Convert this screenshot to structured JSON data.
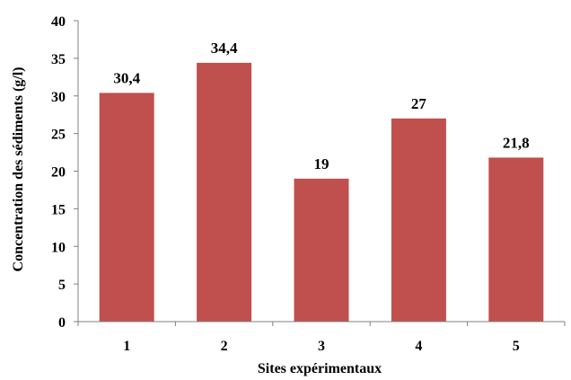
{
  "chart_data": {
    "type": "bar",
    "categories": [
      "1",
      "2",
      "3",
      "4",
      "5"
    ],
    "values": [
      30.4,
      34.4,
      19,
      27,
      21.8
    ],
    "data_labels": [
      "30,4",
      "34,4",
      "19",
      "27",
      "21,8"
    ],
    "ylabel": "Concentration  des sédiments (g/l)",
    "xlabel": "Sites expérimentaux",
    "ylim": [
      0,
      40
    ],
    "yticks": [
      "0",
      "5",
      "10",
      "15",
      "20",
      "25",
      "30",
      "35",
      "40"
    ],
    "grid": false,
    "legend": "none",
    "bar_color": "#c0504d",
    "axis_color": "#808080"
  }
}
